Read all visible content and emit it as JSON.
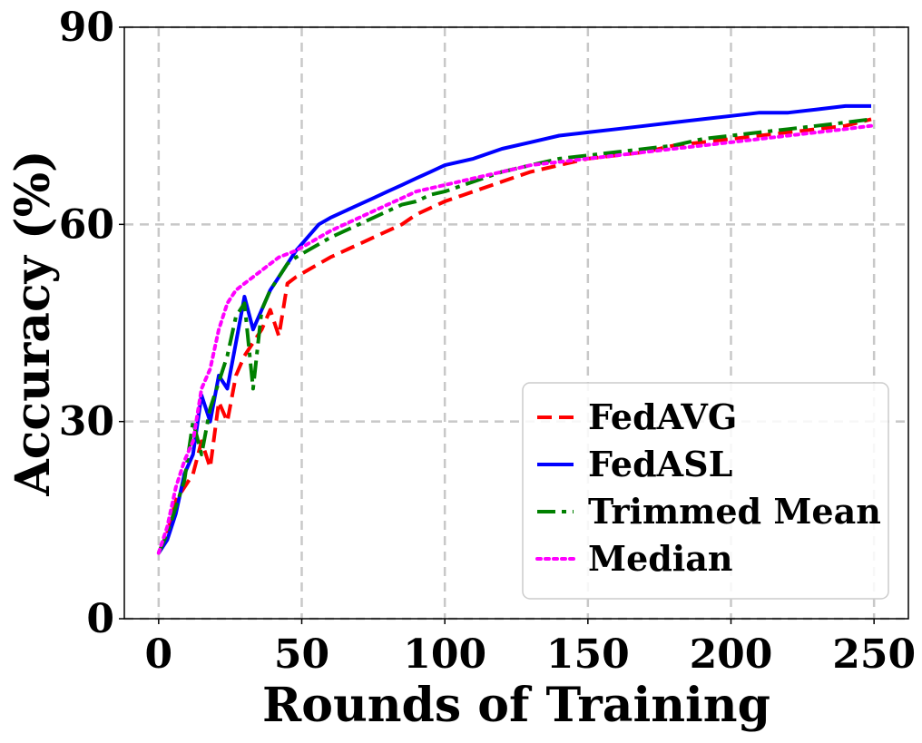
{
  "chart_data": {
    "type": "line",
    "title": "",
    "xlabel": "Rounds of Training",
    "ylabel": "Accuracy (%)",
    "xlim": [
      -12,
      262
    ],
    "ylim": [
      0,
      90
    ],
    "xticks": [
      0,
      50,
      100,
      150,
      200,
      250
    ],
    "yticks": [
      0,
      30,
      60,
      90
    ],
    "xtick_labels": [
      "0",
      "50",
      "100",
      "150",
      "200",
      "250"
    ],
    "ytick_labels": [
      "0",
      "30",
      "60",
      "90"
    ],
    "grid": true,
    "legend_position": "lower-right",
    "series": [
      {
        "name": "FedAVG",
        "color": "#ff0000",
        "style": "dashed",
        "x": [
          0,
          3,
          6,
          9,
          12,
          15,
          18,
          21,
          24,
          27,
          30,
          33,
          36,
          39,
          42,
          45,
          48,
          52,
          56,
          60,
          65,
          70,
          75,
          80,
          85,
          90,
          95,
          100,
          110,
          120,
          130,
          140,
          150,
          160,
          170,
          180,
          190,
          200,
          210,
          220,
          230,
          240,
          249
        ],
        "values": [
          10,
          13,
          18,
          20,
          22,
          27,
          23,
          33,
          30,
          37,
          40,
          42,
          44,
          47,
          43,
          51,
          52,
          53,
          54,
          55,
          56,
          57,
          58,
          59,
          60,
          61.5,
          62.5,
          63.5,
          65,
          66.5,
          68,
          69,
          70,
          70.5,
          71,
          72,
          72.5,
          73,
          73.5,
          74,
          74.5,
          75,
          76
        ]
      },
      {
        "name": "FedASL",
        "color": "#0000ff",
        "style": "solid",
        "x": [
          0,
          3,
          6,
          9,
          12,
          15,
          18,
          21,
          24,
          27,
          30,
          33,
          36,
          39,
          42,
          45,
          48,
          52,
          56,
          60,
          65,
          70,
          75,
          80,
          85,
          90,
          95,
          100,
          110,
          120,
          130,
          140,
          150,
          160,
          170,
          180,
          190,
          200,
          210,
          220,
          230,
          240,
          249
        ],
        "values": [
          10,
          12,
          16,
          22,
          25,
          34,
          30,
          37,
          35,
          42,
          49,
          44,
          47,
          50,
          52,
          54,
          56,
          58,
          60,
          61,
          62,
          63,
          64,
          65,
          66,
          67,
          68,
          69,
          70,
          71.5,
          72.5,
          73.5,
          74,
          74.5,
          75,
          75.5,
          76,
          76.5,
          77,
          77,
          77.5,
          78,
          78
        ]
      },
      {
        "name": "Trimmed Mean",
        "color": "#008000",
        "style": "dashdot",
        "x": [
          0,
          3,
          6,
          9,
          12,
          15,
          18,
          21,
          24,
          27,
          30,
          33,
          36,
          39,
          42,
          45,
          48,
          52,
          56,
          60,
          65,
          70,
          75,
          80,
          85,
          90,
          95,
          100,
          110,
          120,
          130,
          140,
          150,
          160,
          170,
          180,
          190,
          200,
          210,
          220,
          230,
          240,
          249
        ],
        "values": [
          10,
          13,
          17,
          21,
          30,
          25,
          32,
          36,
          40,
          46,
          48,
          35,
          47,
          50,
          52,
          54,
          55,
          56,
          57,
          58,
          59,
          60,
          61,
          62,
          63,
          63.5,
          64.5,
          65,
          66.5,
          68,
          69,
          70,
          70.5,
          71,
          71.5,
          72,
          73,
          73.5,
          74,
          74.5,
          75,
          75.5,
          76
        ]
      },
      {
        "name": "Median",
        "color": "#ff00ff",
        "style": "dotted",
        "x": [
          0,
          3,
          6,
          9,
          12,
          15,
          18,
          21,
          24,
          27,
          30,
          33,
          36,
          39,
          42,
          45,
          48,
          52,
          56,
          60,
          65,
          70,
          75,
          80,
          85,
          90,
          95,
          100,
          110,
          120,
          130,
          140,
          150,
          160,
          170,
          180,
          190,
          200,
          210,
          220,
          230,
          240,
          249
        ],
        "values": [
          10,
          14,
          20,
          24,
          27,
          35,
          38,
          44,
          48,
          50,
          51,
          52,
          53,
          54,
          55,
          55.5,
          56,
          57,
          58,
          59,
          60,
          61,
          62,
          63,
          64,
          65,
          65.5,
          66,
          67,
          68,
          69,
          69.5,
          70,
          70.5,
          71,
          71.5,
          72,
          72.5,
          73,
          73.5,
          74,
          74.5,
          75
        ]
      }
    ]
  }
}
